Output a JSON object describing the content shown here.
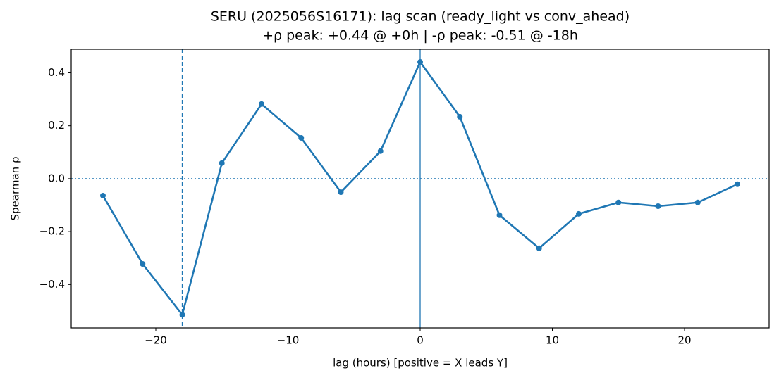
{
  "chart_data": {
    "type": "line",
    "title": "SERU (2025056S16171): lag scan (ready_light vs conv_ahead)",
    "subtitle": "+ρ peak: +0.44 @ +0h | -ρ peak: -0.51 @ -18h",
    "x_label": "lag (hours) [positive = X leads Y]",
    "y_label": "Spearman ρ",
    "x": [
      -24,
      -21,
      -18,
      -15,
      -12,
      -9,
      -6,
      -3,
      0,
      3,
      6,
      9,
      12,
      15,
      18,
      21,
      24
    ],
    "series": [
      {
        "name": "Spearman ρ",
        "color": "#1f77b4",
        "values": [
          -0.064,
          -0.322,
          -0.514,
          0.059,
          0.282,
          0.154,
          -0.051,
          0.104,
          0.441,
          0.234,
          -0.138,
          -0.263,
          -0.133,
          -0.09,
          -0.104,
          -0.09,
          -0.021
        ]
      }
    ],
    "reference_lines": [
      {
        "axis": "x",
        "value": -18,
        "style": "dashed"
      },
      {
        "axis": "x",
        "value": 0,
        "style": "solid"
      },
      {
        "axis": "y",
        "value": 0,
        "style": "dotted"
      }
    ],
    "xlim": [
      -26.4,
      26.4
    ],
    "xticks": [
      {
        "value": -20,
        "label": "−20"
      },
      {
        "value": -10,
        "label": "−10"
      },
      0,
      10,
      20
    ],
    "ylim": [
      -0.564,
      0.489
    ],
    "yticks": [
      {
        "value": -0.4,
        "label": "−0.4"
      },
      {
        "value": -0.2,
        "label": "−0.2"
      },
      {
        "value": 0,
        "label": "0.0"
      },
      0.2,
      0.4
    ],
    "grid": false
  }
}
